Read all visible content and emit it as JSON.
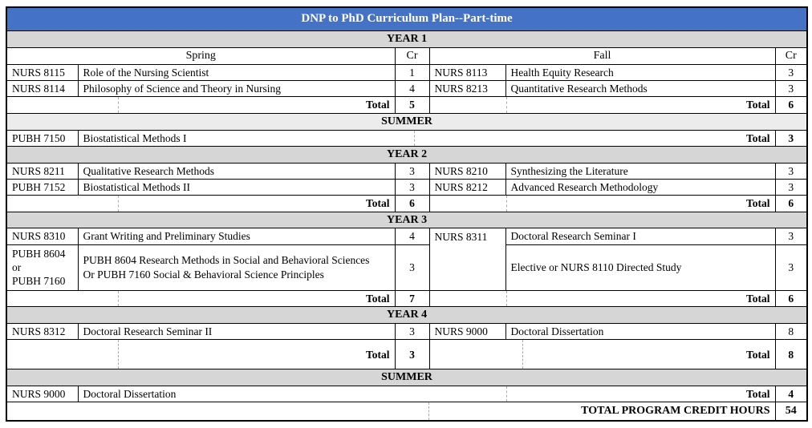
{
  "title": "DNP to PhD Curriculum Plan--Part-time",
  "column_headers": {
    "spring": "Spring",
    "fall": "Fall",
    "cr": "Cr"
  },
  "labels": {
    "total": "Total"
  },
  "colors": {
    "title_bar_blue": "#4472C4",
    "section_band_gray": "#D6D6D6",
    "summer_band_light": "#ECECEC",
    "border": "#000000"
  },
  "year1": {
    "heading": "YEAR 1",
    "courses": [
      {
        "spring_code": "NURS 8115",
        "spring_title": "Role of the Nursing Scientist",
        "spring_cr": "1",
        "fall_code": "NURS 8113",
        "fall_title": "Health Equity Research",
        "fall_cr": "3"
      },
      {
        "spring_code": "NURS 8114",
        "spring_title": "Philosophy of Science and Theory in Nursing",
        "spring_cr": "4",
        "fall_code": "NURS 8213",
        "fall_title": "Quantitative Research Methods",
        "fall_cr": "3"
      }
    ],
    "spring_total": "5",
    "fall_total": "6"
  },
  "summer1": {
    "heading": "SUMMER",
    "code": "PUBH 7150",
    "title": "Biostatistical Methods I",
    "cr": "3"
  },
  "year2": {
    "heading": "YEAR 2",
    "courses": [
      {
        "spring_code": "NURS 8211",
        "spring_title": "Qualitative Research Methods",
        "spring_cr": "3",
        "fall_code": "NURS 8210",
        "fall_title": "Synthesizing the Literature",
        "fall_cr": "3"
      },
      {
        "spring_code": "PUBH 7152",
        "spring_title": "Biostatistical Methods II",
        "spring_cr": "3",
        "fall_code": "NURS 8212",
        "fall_title": "Advanced Research Methodology",
        "fall_cr": "3"
      }
    ],
    "spring_total": "6",
    "fall_total": "6"
  },
  "year3": {
    "heading": "YEAR 3",
    "row1": {
      "spring_code": "NURS 8310",
      "spring_title": "Grant Writing and Preliminary Studies",
      "spring_cr": "4",
      "fall_code": "NURS 8311",
      "fall_title": "Doctoral Research Seminar I",
      "fall_cr": "3"
    },
    "row2": {
      "spring_code_lines": [
        "PUBH 8604",
        "or",
        "PUBH 7160"
      ],
      "spring_title_lines": [
        "PUBH 8604 Research Methods in Social and Behavioral Sciences",
        "Or PUBH 7160 Social & Behavioral Science Principles"
      ],
      "spring_cr": "3",
      "fall_title": "Elective or NURS 8110 Directed Study",
      "fall_cr": "3"
    },
    "spring_total": "7",
    "fall_total": "6"
  },
  "year4": {
    "heading": "YEAR 4",
    "courses": [
      {
        "spring_code": "NURS 8312",
        "spring_title": "Doctoral Research Seminar II",
        "spring_cr": "3",
        "fall_code": "NURS 9000",
        "fall_title": "Doctoral Dissertation",
        "fall_cr": "8"
      }
    ],
    "spring_total": "3",
    "fall_total": "8"
  },
  "summer2": {
    "heading": "SUMMER",
    "code": "NURS 9000",
    "title": "Doctoral Dissertation",
    "cr": "4"
  },
  "grand_total": {
    "label": "TOTAL PROGRAM CREDIT HOURS",
    "value": "54"
  }
}
